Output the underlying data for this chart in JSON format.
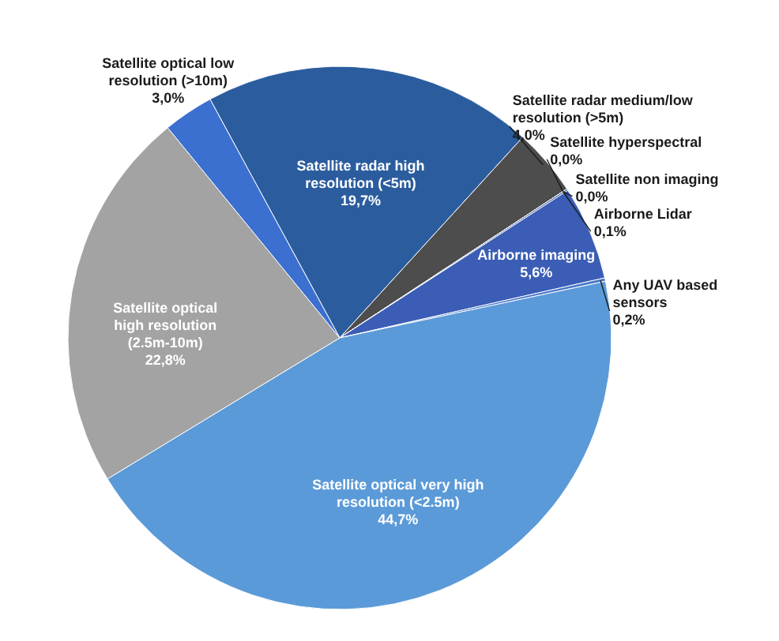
{
  "chart_data": {
    "type": "pie",
    "categories": [
      "Satellite radar high resolution (<5m)",
      "Satellite radar medium/low resolution (>5m)",
      "Satellite hyperspectral",
      "Satellite non imaging",
      "Airborne Lidar",
      "Airborne imaging",
      "Any UAV based sensors",
      "Satellite optical  very high resolution (<2.5m)",
      "Satellite optical high resolution (2.5m-10m)",
      "Satellite optical low resolution (>10m)"
    ],
    "values": [
      19.7,
      4.0,
      0.0,
      0.0,
      0.1,
      5.6,
      0.2,
      44.7,
      22.8,
      3.0
    ],
    "value_labels": [
      "19,7%",
      "4,0%",
      "0,0%",
      "0,0%",
      "0,1%",
      "5,6%",
      "0,2%",
      "44,7%",
      "22,8%",
      "3,0%"
    ],
    "colors": [
      "#2b5c9e",
      "#4d4d4d",
      "#6f86b8",
      "#5a79b5",
      "#3d5f9e",
      "#3b5db5",
      "#4a78c8",
      "#5b9ad8",
      "#a3a3a3",
      "#3c70d0"
    ]
  }
}
